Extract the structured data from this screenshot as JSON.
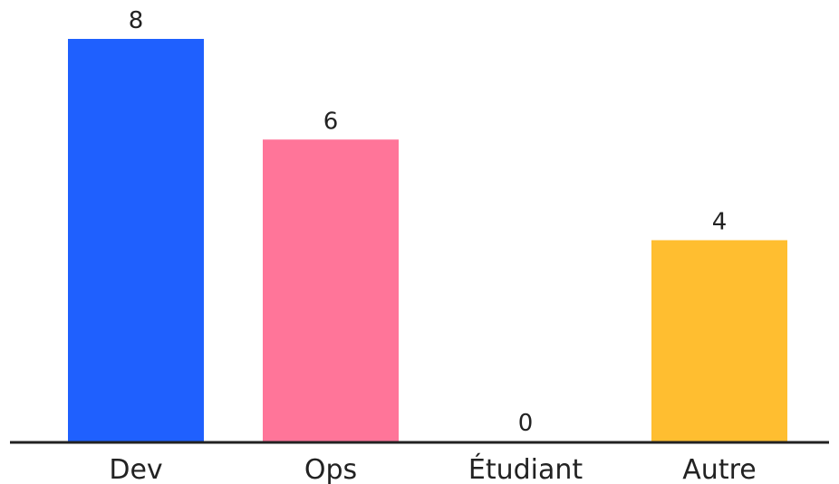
{
  "chart_data": {
    "type": "bar",
    "categories": [
      "Dev",
      "Ops",
      "Étudiant",
      "Autre"
    ],
    "values": [
      8,
      6,
      0,
      4
    ],
    "colors": [
      "#1f60fe",
      "#ff7599",
      "#a3a3a3",
      "#ffbe30"
    ],
    "value_labels": [
      "8",
      "6",
      "0",
      "4"
    ],
    "ylim": [
      0,
      8
    ],
    "grid": false,
    "legend": "none"
  }
}
